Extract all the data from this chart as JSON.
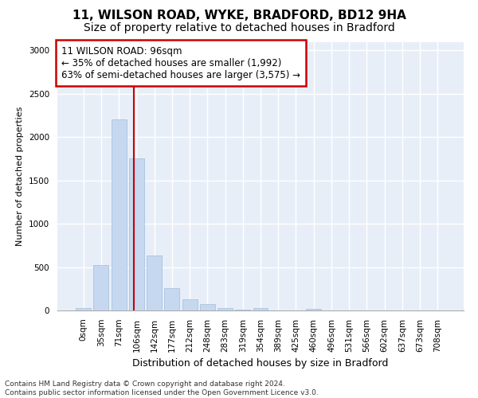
{
  "title1": "11, WILSON ROAD, WYKE, BRADFORD, BD12 9HA",
  "title2": "Size of property relative to detached houses in Bradford",
  "xlabel": "Distribution of detached houses by size in Bradford",
  "ylabel": "Number of detached properties",
  "bar_labels": [
    "0sqm",
    "35sqm",
    "71sqm",
    "106sqm",
    "142sqm",
    "177sqm",
    "212sqm",
    "248sqm",
    "283sqm",
    "319sqm",
    "354sqm",
    "389sqm",
    "425sqm",
    "460sqm",
    "496sqm",
    "531sqm",
    "566sqm",
    "602sqm",
    "637sqm",
    "673sqm",
    "708sqm"
  ],
  "bar_values": [
    25,
    520,
    2200,
    1750,
    635,
    260,
    130,
    70,
    30,
    10,
    30,
    0,
    0,
    20,
    0,
    0,
    0,
    0,
    0,
    0,
    0
  ],
  "bar_color": "#c5d8f0",
  "bar_edge_color": "#a8c4e0",
  "vline_x": 2.85,
  "vline_color": "#cc0000",
  "annotation_text": "11 WILSON ROAD: 96sqm\n← 35% of detached houses are smaller (1,992)\n63% of semi-detached houses are larger (3,575) →",
  "annotation_box_facecolor": "#ffffff",
  "annotation_box_edgecolor": "#cc0000",
  "ylim": [
    0,
    3100
  ],
  "yticks": [
    0,
    500,
    1000,
    1500,
    2000,
    2500,
    3000
  ],
  "footer1": "Contains HM Land Registry data © Crown copyright and database right 2024.",
  "footer2": "Contains public sector information licensed under the Open Government Licence v3.0.",
  "fig_bg_color": "#ffffff",
  "plot_bg_color": "#e8eef8",
  "grid_color": "#ffffff",
  "title1_fontsize": 11,
  "title2_fontsize": 10,
  "xlabel_fontsize": 9,
  "ylabel_fontsize": 8,
  "tick_fontsize": 7.5,
  "annot_fontsize": 8.5,
  "footer_fontsize": 6.5
}
